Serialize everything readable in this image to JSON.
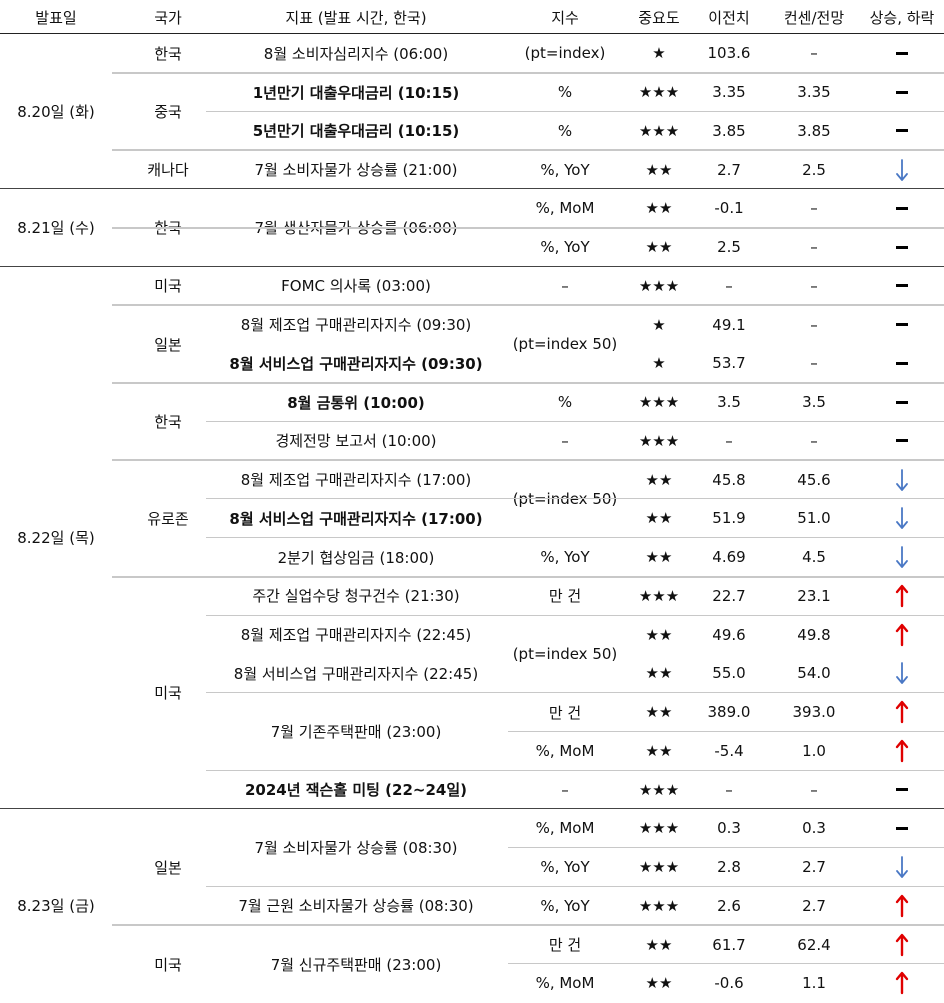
{
  "header": {
    "date": "발표일",
    "country": "국가",
    "indicator": "지표 (발표 시간, 한국)",
    "unit": "지수",
    "importance": "중요도",
    "previous": "이전치",
    "consensus": "컨센/전망",
    "direction": "상승, 하락"
  },
  "colors": {
    "up": "#e00000",
    "down": "#4a78c5",
    "flat": "#000000",
    "rule_light": "#c8c8c8",
    "rule_dark": "#222222"
  },
  "dates": [
    {
      "label": "8.20일 (화)"
    },
    {
      "label": "8.21일 (수)"
    },
    {
      "label": "8.22일 (목)"
    },
    {
      "label": "8.23일 (금)"
    }
  ],
  "countries": [
    {
      "label": "한국"
    },
    {
      "label": "중국"
    },
    {
      "label": "캐나다"
    },
    {
      "label": "한국"
    },
    {
      "label": "미국"
    },
    {
      "label": "일본"
    },
    {
      "label": "한국"
    },
    {
      "label": "유로존"
    },
    {
      "label": "미국"
    },
    {
      "label": "일본"
    },
    {
      "label": "미국"
    }
  ],
  "indicators": [
    {
      "label": "8월 소비자심리지수 (06:00)"
    },
    {
      "label": "1년만기 대출우대금리 (10:15)"
    },
    {
      "label": "5년만기 대출우대금리 (10:15)"
    },
    {
      "label": "7월 소비자물가 상승률 (21:00)"
    },
    {
      "label": "7월 생산자물가 상승률 (06:00)"
    },
    {
      "label": "FOMC 의사록 (03:00)"
    },
    {
      "label": "8월 제조업 구매관리자지수 (09:30)"
    },
    {
      "label": "8월 서비스업 구매관리자지수 (09:30)"
    },
    {
      "label": "8월 금통위 (10:00)"
    },
    {
      "label": "경제전망 보고서 (10:00)"
    },
    {
      "label": "8월 제조업 구매관리자지수 (17:00)"
    },
    {
      "label": "8월 서비스업 구매관리자지수 (17:00)"
    },
    {
      "label": "2분기 협상임금 (18:00)"
    },
    {
      "label": "주간 실업수당 청구건수 (21:30)"
    },
    {
      "label": "8월 제조업 구매관리자지수 (22:45)"
    },
    {
      "label": "8월 서비스업 구매관리자지수 (22:45)"
    },
    {
      "label": "7월 기존주택판매 (23:00)"
    },
    {
      "label": "2024년 잭슨홀 미팅 (22~24일)"
    },
    {
      "label": "7월 소비자물가 상승률 (08:30)"
    },
    {
      "label": "7월 근원 소비자물가 상승률 (08:30)"
    },
    {
      "label": "7월 신규주택판매 (23:00)"
    }
  ],
  "units": [
    {
      "label": "(pt=index)"
    },
    {
      "label": "%"
    },
    {
      "label": "%"
    },
    {
      "label": "%, YoY"
    },
    {
      "label": "%, MoM"
    },
    {
      "label": "%, YoY"
    },
    {
      "label": "–"
    },
    {
      "label": "(pt=index 50)"
    },
    {
      "label": "%"
    },
    {
      "label": "–"
    },
    {
      "label": "(pt=index 50)"
    },
    {
      "label": "%, YoY"
    },
    {
      "label": "만 건"
    },
    {
      "label": "(pt=index 50)"
    },
    {
      "label": "만 건"
    },
    {
      "label": "%, MoM"
    },
    {
      "label": "–"
    },
    {
      "label": "%, MoM"
    },
    {
      "label": "%, YoY"
    },
    {
      "label": "%, YoY"
    },
    {
      "label": "만 건"
    },
    {
      "label": "%, MoM"
    }
  ],
  "rows": [
    {
      "stars": "★",
      "previous": "103.6",
      "consensus": "–",
      "direction": "flat"
    },
    {
      "stars": "★★★",
      "previous": "3.35",
      "consensus": "3.35",
      "direction": "flat"
    },
    {
      "stars": "★★★",
      "previous": "3.85",
      "consensus": "3.85",
      "direction": "flat"
    },
    {
      "stars": "★★",
      "previous": "2.7",
      "consensus": "2.5",
      "direction": "down"
    },
    {
      "stars": "★★",
      "previous": "-0.1",
      "consensus": "–",
      "direction": "flat"
    },
    {
      "stars": "★★",
      "previous": "2.5",
      "consensus": "–",
      "direction": "flat"
    },
    {
      "stars": "★★★",
      "previous": "–",
      "consensus": "–",
      "direction": "flat"
    },
    {
      "stars": "★",
      "previous": "49.1",
      "consensus": "–",
      "direction": "flat"
    },
    {
      "stars": "★",
      "previous": "53.7",
      "consensus": "–",
      "direction": "flat"
    },
    {
      "stars": "★★★",
      "previous": "3.5",
      "consensus": "3.5",
      "direction": "flat"
    },
    {
      "stars": "★★★",
      "previous": "–",
      "consensus": "–",
      "direction": "flat"
    },
    {
      "stars": "★★",
      "previous": "45.8",
      "consensus": "45.6",
      "direction": "down"
    },
    {
      "stars": "★★",
      "previous": "51.9",
      "consensus": "51.0",
      "direction": "down"
    },
    {
      "stars": "★★",
      "previous": "4.69",
      "consensus": "4.5",
      "direction": "down"
    },
    {
      "stars": "★★★",
      "previous": "22.7",
      "consensus": "23.1",
      "direction": "up"
    },
    {
      "stars": "★★",
      "previous": "49.6",
      "consensus": "49.8",
      "direction": "up"
    },
    {
      "stars": "★★",
      "previous": "55.0",
      "consensus": "54.0",
      "direction": "down"
    },
    {
      "stars": "★★",
      "previous": "389.0",
      "consensus": "393.0",
      "direction": "up"
    },
    {
      "stars": "★★",
      "previous": "-5.4",
      "consensus": "1.0",
      "direction": "up"
    },
    {
      "stars": "★★★",
      "previous": "–",
      "consensus": "–",
      "direction": "flat"
    },
    {
      "stars": "★★★",
      "previous": "0.3",
      "consensus": "0.3",
      "direction": "flat"
    },
    {
      "stars": "★★★",
      "previous": "2.8",
      "consensus": "2.7",
      "direction": "down"
    },
    {
      "stars": "★★★",
      "previous": "2.6",
      "consensus": "2.7",
      "direction": "up"
    },
    {
      "stars": "★★",
      "previous": "61.7",
      "consensus": "62.4",
      "direction": "up"
    },
    {
      "stars": "★★",
      "previous": "-0.6",
      "consensus": "1.1",
      "direction": "up"
    }
  ]
}
